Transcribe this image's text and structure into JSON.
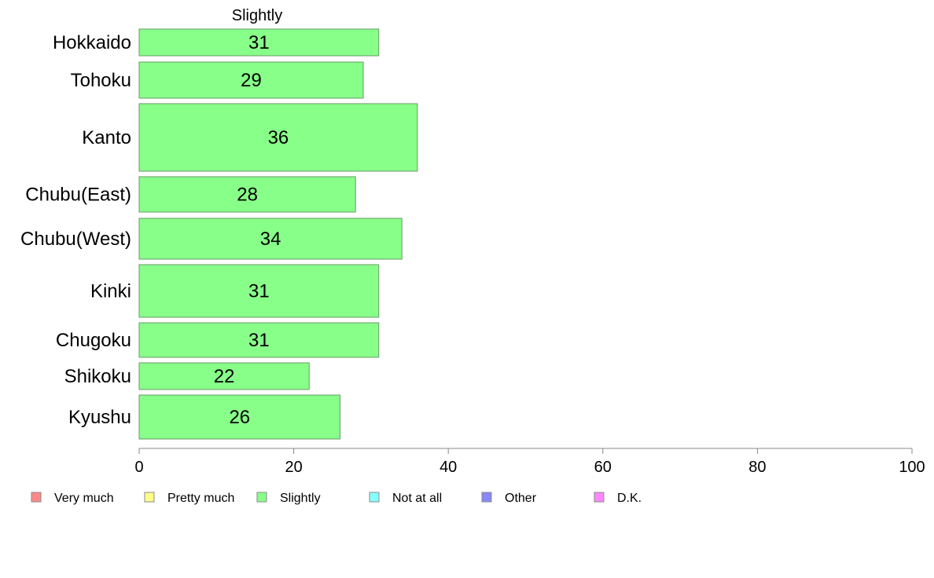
{
  "chart_data": {
    "type": "bar",
    "orientation": "horizontal",
    "variable_width": true,
    "panel_title": "Slightly",
    "categories": [
      "Hokkaido",
      "Tohoku",
      "Kanto",
      "Chubu(East)",
      "Chubu(West)",
      "Kinki",
      "Chugoku",
      "Shikoku",
      "Kyushu"
    ],
    "values": [
      31,
      29,
      36,
      28,
      34,
      31,
      31,
      22,
      26
    ],
    "value_labels": [
      "31",
      "29",
      "36",
      "28",
      "34",
      "31",
      "31",
      "22",
      "26"
    ],
    "xlim": [
      0,
      100
    ],
    "x_ticks": [
      0,
      20,
      40,
      60,
      80,
      100
    ],
    "x_tick_labels": [
      "0",
      "20",
      "40",
      "60",
      "80",
      "100"
    ],
    "bar_color": "#88ff88",
    "grid": false,
    "legend_position": "bottom",
    "legend": [
      {
        "label": "Very much",
        "color": "#ff8888"
      },
      {
        "label": "Pretty much",
        "color": "#ffff88"
      },
      {
        "label": "Slightly",
        "color": "#88ff88"
      },
      {
        "label": "Not at all",
        "color": "#88ffff"
      },
      {
        "label": "Other",
        "color": "#8888ff"
      },
      {
        "label": "D.K.",
        "color": "#ff88ff"
      }
    ]
  }
}
